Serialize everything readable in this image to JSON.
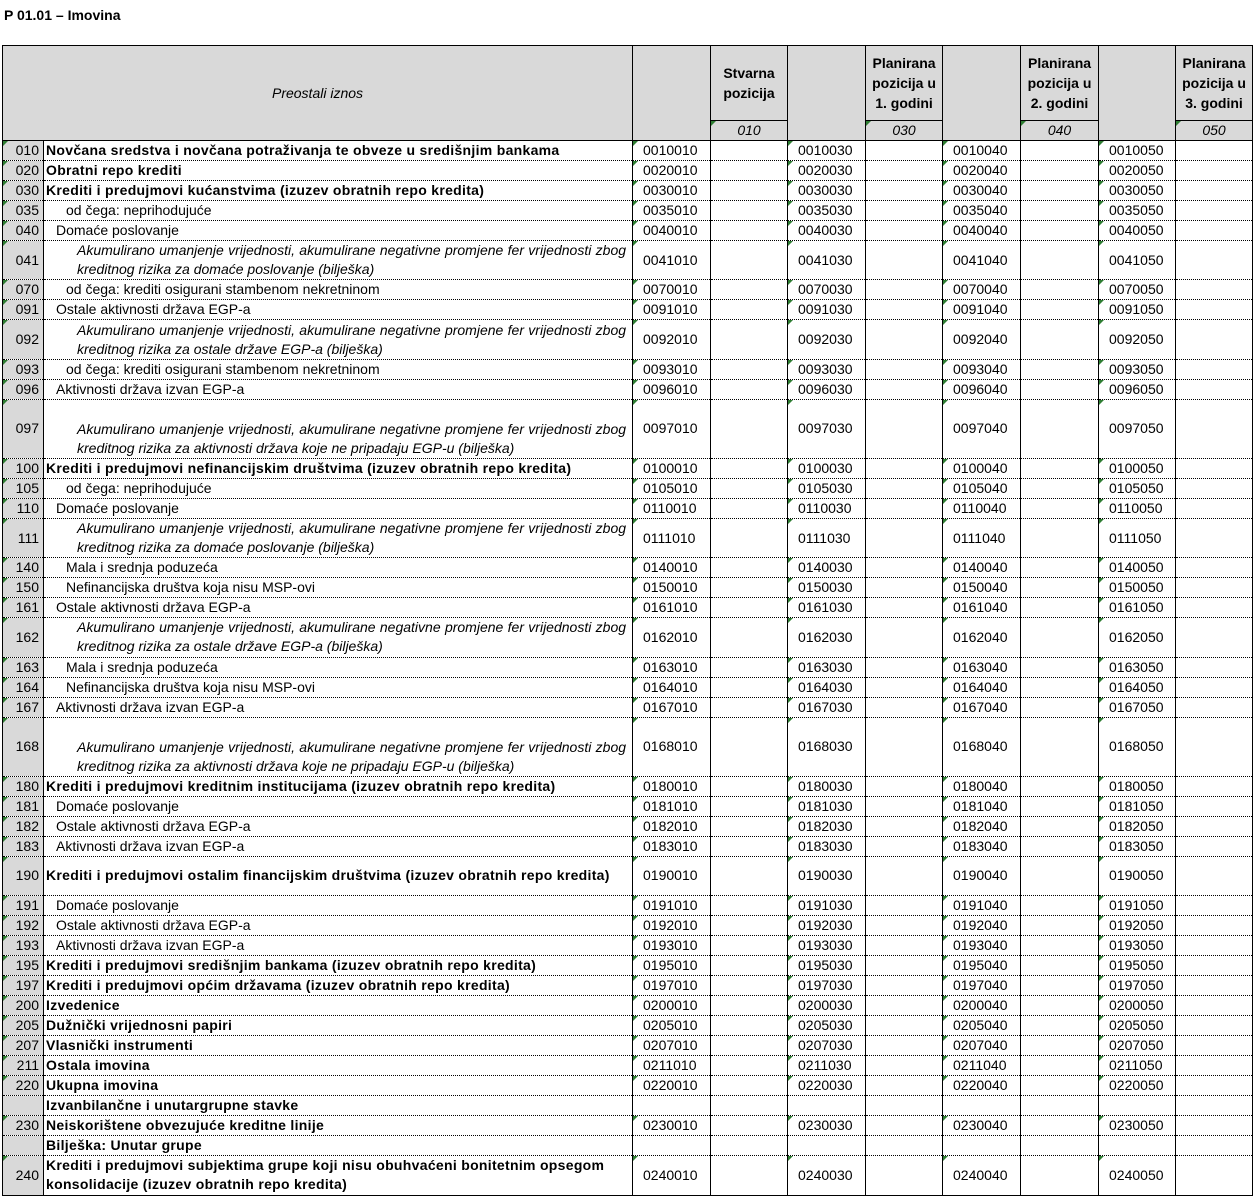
{
  "title": "P 01.01 – Imovina",
  "header": {
    "title": "Preostali iznos",
    "columns": [
      {
        "title": "Stvarna pozicija",
        "code": "010"
      },
      {
        "title": "Planirana pozicija u 1. godini",
        "code": "030"
      },
      {
        "title": "Planirana pozicija u 2. godini",
        "code": "040"
      },
      {
        "title": "Planirana pozicija u 3. godini",
        "code": "050"
      }
    ]
  },
  "rows": [
    {
      "code": "010",
      "label": "Novčana sredstva i novčana potraživanja te obveze u središnjim bankama",
      "cells": [
        "0010010",
        "0010030",
        "0010040",
        "0010050"
      ]
    },
    {
      "code": "020",
      "label": "Obratni repo krediti",
      "cells": [
        "0020010",
        "0020030",
        "0020040",
        "0020050"
      ]
    },
    {
      "code": "030",
      "label": "Krediti i predujmovi kućanstvima (izuzev obratnih repo kredita)",
      "cells": [
        "0030010",
        "0030030",
        "0030040",
        "0030050"
      ]
    },
    {
      "code": "035",
      "label": "od čega: neprihodujuće",
      "cells": [
        "0035010",
        "0035030",
        "0035040",
        "0035050"
      ]
    },
    {
      "code": "040",
      "label": "Domaće poslovanje",
      "cells": [
        "0040010",
        "0040030",
        "0040040",
        "0040050"
      ]
    },
    {
      "code": "041",
      "label": "Akumulirano umanjenje vrijednosti, akumulirane negativne promjene fer vrijednosti zbog kreditnog rizika za domaće poslovanje (bilješka)",
      "cells": [
        "0041010",
        "0041030",
        "0041040",
        "0041050"
      ]
    },
    {
      "code": "070",
      "label": "od čega: krediti osigurani stambenom nekretninom",
      "cells": [
        "0070010",
        "0070030",
        "0070040",
        "0070050"
      ]
    },
    {
      "code": "091",
      "label": "Ostale aktivnosti država EGP-a",
      "cells": [
        "0091010",
        "0091030",
        "0091040",
        "0091050"
      ]
    },
    {
      "code": "092",
      "label": "Akumulirano umanjenje vrijednosti, akumulirane negativne promjene fer vrijednosti zbog kreditnog rizika za ostale države EGP-a (bilješka)",
      "cells": [
        "0092010",
        "0092030",
        "0092040",
        "0092050"
      ]
    },
    {
      "code": "093",
      "label": "od čega: krediti osigurani stambenom nekretninom",
      "cells": [
        "0093010",
        "0093030",
        "0093040",
        "0093050"
      ]
    },
    {
      "code": "096",
      "label": "Aktivnosti država izvan EGP-a",
      "cells": [
        "0096010",
        "0096030",
        "0096040",
        "0096050"
      ]
    },
    {
      "code": "097",
      "label": "Akumulirano umanjenje vrijednosti, akumulirane negativne promjene fer vrijednosti zbog kreditnog rizika za aktivnosti država koje ne pripadaju EGP-u (bilješka)",
      "cells": [
        "0097010",
        "0097030",
        "0097040",
        "0097050"
      ]
    },
    {
      "code": "100",
      "label": "Krediti i predujmovi nefinancijskim društvima (izuzev obratnih repo kredita)",
      "cells": [
        "0100010",
        "0100030",
        "0100040",
        "0100050"
      ]
    },
    {
      "code": "105",
      "label": "od čega: neprihodujuće",
      "cells": [
        "0105010",
        "0105030",
        "0105040",
        "0105050"
      ]
    },
    {
      "code": "110",
      "label": "Domaće poslovanje",
      "cells": [
        "0110010",
        "0110030",
        "0110040",
        "0110050"
      ]
    },
    {
      "code": "111",
      "label": "Akumulirano umanjenje vrijednosti, akumulirane negativne promjene fer vrijednosti zbog kreditnog rizika za domaće poslovanje (bilješka)",
      "cells": [
        "0111010",
        "0111030",
        "0111040",
        "0111050"
      ]
    },
    {
      "code": "140",
      "label": "Mala i srednja poduzeća",
      "cells": [
        "0140010",
        "0140030",
        "0140040",
        "0140050"
      ]
    },
    {
      "code": "150",
      "label": "Nefinancijska društva koja nisu MSP-ovi",
      "cells": [
        "0150010",
        "0150030",
        "0150040",
        "0150050"
      ]
    },
    {
      "code": "161",
      "label": "Ostale aktivnosti država EGP-a",
      "cells": [
        "0161010",
        "0161030",
        "0161040",
        "0161050"
      ]
    },
    {
      "code": "162",
      "label": "Akumulirano umanjenje vrijednosti, akumulirane negativne promjene fer vrijednosti zbog kreditnog rizika za ostale države EGP-a (bilješka)",
      "cells": [
        "0162010",
        "0162030",
        "0162040",
        "0162050"
      ]
    },
    {
      "code": "163",
      "label": "Mala i srednja poduzeća",
      "cells": [
        "0163010",
        "0163030",
        "0163040",
        "0163050"
      ]
    },
    {
      "code": "164",
      "label": "Nefinancijska društva koja nisu MSP-ovi",
      "cells": [
        "0164010",
        "0164030",
        "0164040",
        "0164050"
      ]
    },
    {
      "code": "167",
      "label": "Aktivnosti država izvan EGP-a",
      "cells": [
        "0167010",
        "0167030",
        "0167040",
        "0167050"
      ]
    },
    {
      "code": "168",
      "label": "Akumulirano umanjenje vrijednosti, akumulirane negativne promjene fer vrijednosti zbog kreditnog rizika za aktivnosti država koje ne pripadaju EGP-u (bilješka)",
      "cells": [
        "0168010",
        "0168030",
        "0168040",
        "0168050"
      ]
    },
    {
      "code": "180",
      "label": "Krediti i predujmovi kreditnim institucijama (izuzev obratnih repo kredita)",
      "cells": [
        "0180010",
        "0180030",
        "0180040",
        "0180050"
      ]
    },
    {
      "code": "181",
      "label": "Domaće poslovanje",
      "cells": [
        "0181010",
        "0181030",
        "0181040",
        "0181050"
      ]
    },
    {
      "code": "182",
      "label": "Ostale aktivnosti država EGP-a",
      "cells": [
        "0182010",
        "0182030",
        "0182040",
        "0182050"
      ]
    },
    {
      "code": "183",
      "label": "Aktivnosti država izvan EGP-a",
      "cells": [
        "0183010",
        "0183030",
        "0183040",
        "0183050"
      ]
    },
    {
      "code": "190",
      "label": "Krediti i predujmovi ostalim financijskim društvima (izuzev obratnih repo kredita)",
      "cells": [
        "0190010",
        "0190030",
        "0190040",
        "0190050"
      ]
    },
    {
      "code": "191",
      "label": "Domaće poslovanje",
      "cells": [
        "0191010",
        "0191030",
        "0191040",
        "0191050"
      ]
    },
    {
      "code": "192",
      "label": "Ostale aktivnosti država EGP-a",
      "cells": [
        "0192010",
        "0192030",
        "0192040",
        "0192050"
      ]
    },
    {
      "code": "193",
      "label": "Aktivnosti država izvan EGP-a",
      "cells": [
        "0193010",
        "0193030",
        "0193040",
        "0193050"
      ]
    },
    {
      "code": "195",
      "label": "Krediti i predujmovi središnjim bankama (izuzev obratnih repo kredita)",
      "cells": [
        "0195010",
        "0195030",
        "0195040",
        "0195050"
      ]
    },
    {
      "code": "197",
      "label": "Krediti i predujmovi općim državama (izuzev obratnih repo kredita)",
      "cells": [
        "0197010",
        "0197030",
        "0197040",
        "0197050"
      ]
    },
    {
      "code": "200",
      "label": "Izvedenice",
      "cells": [
        "0200010",
        "0200030",
        "0200040",
        "0200050"
      ]
    },
    {
      "code": "205",
      "label": "Dužnički vrijednosni papiri",
      "cells": [
        "0205010",
        "0205030",
        "0205040",
        "0205050"
      ]
    },
    {
      "code": "207",
      "label": "Vlasnički instrumenti",
      "cells": [
        "0207010",
        "0207030",
        "0207040",
        "0207050"
      ]
    },
    {
      "code": "211",
      "label": "Ostala imovina",
      "cells": [
        "0211010",
        "0211030",
        "0211040",
        "0211050"
      ]
    },
    {
      "code": "220",
      "label": "Ukupna imovina",
      "cells": [
        "0220010",
        "0220030",
        "0220040",
        "0220050"
      ]
    },
    {
      "label": "Izvanbilančne i unutargrupne stavke"
    },
    {
      "code": "230",
      "label": "Neiskorištene obvezujuće kreditne linije",
      "cells": [
        "0230010",
        "0230030",
        "0230040",
        "0230050"
      ]
    },
    {
      "label": "Bilješka: Unutar grupe"
    },
    {
      "code": "240",
      "label": "Krediti i predujmovi subjektima grupe koji nisu obuhvaćeni bonitetnim opsegom konsolidacije (izuzev obratnih repo kredita)",
      "cells": [
        "0240010",
        "0240030",
        "0240040",
        "0240050"
      ]
    }
  ]
}
